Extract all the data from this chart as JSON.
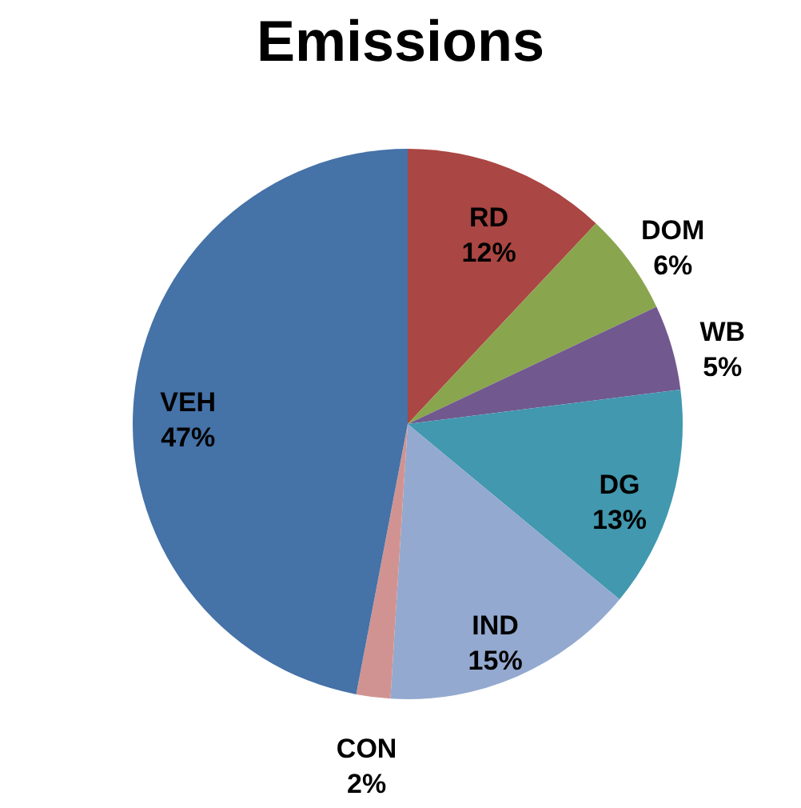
{
  "chart_data": {
    "type": "pie",
    "title": "Emissions",
    "categories": [
      "RD",
      "DOM",
      "WB",
      "DG",
      "IND",
      "CON",
      "VEH"
    ],
    "values": [
      12,
      6,
      5,
      13,
      15,
      2,
      47
    ],
    "value_labels": [
      "12%",
      "6%",
      "5%",
      "13%",
      "15%",
      "2%",
      "47%"
    ],
    "colors": [
      "#aa4643",
      "#89a54e",
      "#71588f",
      "#4198af",
      "#93a9cf",
      "#d19392",
      "#4572a7"
    ],
    "legend": false
  }
}
